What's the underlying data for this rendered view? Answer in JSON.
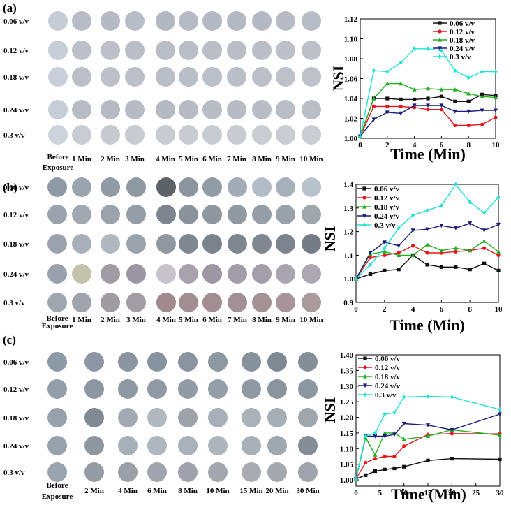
{
  "panels": [
    {
      "label": "(a)",
      "rows": [
        "0.06 v/v",
        "0.12 v/v",
        "0.18 v/v",
        "0.24 v/v",
        "0.3 v/v"
      ],
      "cols": [
        "Before Exposure",
        "1 Min",
        "2 Min",
        "3 Min",
        "4 Min",
        "5 Min",
        "6 Min",
        "7 Min",
        "8 Min",
        "9 Min",
        "10 Min"
      ],
      "row_colors": [
        [
          "#c4ccd6",
          "#b7bcc6",
          "#b5b9c3",
          "#b8bcc6",
          "#b3b7c1",
          "#b6bac4",
          "#b5b9c3",
          "#b4b8c2",
          "#b5b9c3",
          "#b7bbc5",
          "#b8bcc6"
        ],
        [
          "#c7ced8",
          "#bcc0c9",
          "#bdc0c8",
          "#babec6",
          "#b9bdc5",
          "#b9bdc5",
          "#bbbec6",
          "#babdc5",
          "#babec6",
          "#bcc0c8",
          "#bdc0c8"
        ],
        [
          "#c8cfd8",
          "#babfc8",
          "#bcc0c8",
          "#bbbfc7",
          "#babec6",
          "#babec6",
          "#bbbfc7",
          "#babec6",
          "#bbbfc7",
          "#bdc1c9",
          "#bec1c9"
        ],
        [
          "#c6cdd6",
          "#b8bcc5",
          "#b6bac3",
          "#b7bbc4",
          "#b5b9c2",
          "#b8bbc4",
          "#b8bcc4",
          "#b7bbc3",
          "#b8bcc4",
          "#b9bdc6",
          "#babec6"
        ],
        [
          "#cdd3db",
          "#c9ccd2",
          "#c7cad0",
          "#c8cbd1",
          "#c8cbd1",
          "#c8cbd1",
          "#c8cbd1",
          "#c8cbd1",
          "#c9ccd2",
          "#c9ccd2",
          "#cacdd3"
        ]
      ]
    },
    {
      "label": "(b)",
      "rows": [
        "0.06 v/v",
        "0.12 v/v",
        "0.18 v/v",
        "0.24 v/v",
        "0.3 v/v"
      ],
      "cols": [
        "Before Exposure",
        "1 Min",
        "2 Min",
        "3 Min",
        "4 Min",
        "5 Min",
        "6 Min",
        "7 Min",
        "8 Min",
        "9 Min",
        "10 Min"
      ],
      "row_colors": [
        [
          "#8f9aa6",
          "#9aa4ae",
          "#919ba5",
          "#8f99a3",
          "#5c6266",
          "#8b959f",
          "#929ca6",
          "#a2acb6",
          "#b2bcc6",
          "#a6b0ba",
          "#b8c2cc"
        ],
        [
          "#9aa3ad",
          "#a0a9b2",
          "#9aa3ac",
          "#959ea7",
          "#7d868f",
          "#8a939c",
          "#8e979f",
          "#9099a1",
          "#959ea6",
          "#99a2aa",
          "#9ea6ae"
        ],
        [
          "#9aa3ad",
          "#a7b0b9",
          "#b0b8c0",
          "#9aa2ab",
          "#8f98a1",
          "#7f8790",
          "#7a828b",
          "#7e868f",
          "#7f8790",
          "#7c848d",
          "#737b84"
        ],
        [
          "#99a1ac",
          "#c4c2ac",
          "#a29aa4",
          "#9a96a2",
          "#c7c2cc",
          "#a8a2ae",
          "#9e97a3",
          "#a39da9",
          "#a49eaa",
          "#aaa4b0",
          "#aea8b3"
        ],
        [
          "#9ea6b0",
          "#a0a4ac",
          "#a09aa2",
          "#a29ca4",
          "#a08a8e",
          "#a38e93",
          "#a28d92",
          "#a39095",
          "#a59297",
          "#a99599",
          "#a99a9e"
        ]
      ]
    },
    {
      "label": "(c)",
      "rows": [
        "0.06 v/v",
        "0.12 v/v",
        "0.18 v/v",
        "0.24 v/v",
        "0.3 v/v"
      ],
      "cols": [
        "Before Exposure",
        "2 Min",
        "4 Min",
        "6 Min",
        "8 Min",
        "10 Min",
        "15 Min",
        "20 Min",
        "30 Min"
      ],
      "row_colors": [
        [
          "#8d99a6",
          "#8c97a3",
          "#8a95a1",
          "#8893a0",
          "#8a94a0",
          "#8e98a3",
          "#87919c",
          "#7f8994",
          "#848e99"
        ],
        [
          "#949ea9",
          "#8c97a2",
          "#8d98a3",
          "#8f9aa5",
          "#909ba6",
          "#939ea8",
          "#8f99a4",
          "#8a949f",
          "#8c96a1"
        ],
        [
          "#97a1ac",
          "#808a93",
          "#a2abb4",
          "#b0b8c0",
          "#9ca3ab",
          "#a7b0b8",
          "#a9b1b9",
          "#a6aeb6",
          "#9ea6ae"
        ],
        [
          "#98a2ad",
          "#8d979f",
          "#a6b0b8",
          "#aeb7bf",
          "#a9b2ba",
          "#acb4bc",
          "#a8b0b8",
          "#9fa7af",
          "#858e97"
        ],
        [
          "#9aa4ae",
          "#959ca4",
          "#9aa0a8",
          "#a0a5ad",
          "#9fa2aa",
          "#a3a6ad",
          "#a9acb2",
          "#a5a8ae",
          "#a1a4aa"
        ]
      ]
    }
  ],
  "chart_data": [
    {
      "type": "line",
      "xlabel": "Time (Min)",
      "ylabel": "NSI",
      "xlim": [
        0,
        10
      ],
      "ylim": [
        1.0,
        1.12
      ],
      "xticks": [
        "0",
        "2",
        "4",
        "6",
        "8",
        "10"
      ],
      "yticks": [
        "1.00",
        "1.02",
        "1.04",
        "1.06",
        "1.08",
        "1.10",
        "1.12"
      ],
      "x": [
        0,
        1,
        2,
        3,
        4,
        5,
        6,
        7,
        8,
        9,
        10
      ],
      "series": [
        {
          "name": "0.06 v/v",
          "color": "#111111",
          "marker": "square",
          "values": [
            1.002,
            1.04,
            1.04,
            1.039,
            1.039,
            1.04,
            1.042,
            1.037,
            1.037,
            1.044,
            1.043
          ]
        },
        {
          "name": "0.12 v/v",
          "color": "#e8141c",
          "marker": "circle",
          "values": [
            1.002,
            1.032,
            1.032,
            1.032,
            1.031,
            1.029,
            1.029,
            1.013,
            1.013,
            1.014,
            1.021
          ]
        },
        {
          "name": "0.18 v/v",
          "color": "#22b022",
          "marker": "triangle",
          "values": [
            1.002,
            1.04,
            1.055,
            1.055,
            1.049,
            1.05,
            1.049,
            1.049,
            1.045,
            1.042,
            1.041
          ]
        },
        {
          "name": "0.24 v/v",
          "color": "#1c1c7a",
          "marker": "triangle-down",
          "values": [
            1.002,
            1.019,
            1.026,
            1.025,
            1.033,
            1.033,
            1.033,
            1.027,
            1.027,
            1.028,
            1.028
          ]
        },
        {
          "name": "0.3 v/v",
          "color": "#21e3d4",
          "marker": "diamond",
          "values": [
            1.002,
            1.068,
            1.067,
            1.076,
            1.09,
            1.09,
            1.088,
            1.068,
            1.061,
            1.067,
            1.067
          ]
        }
      ]
    },
    {
      "type": "line",
      "xlabel": "Time (Min)",
      "ylabel": "NSI",
      "xlim": [
        0,
        10
      ],
      "ylim": [
        0.9,
        1.4
      ],
      "xticks": [
        "0",
        "2",
        "4",
        "6",
        "8",
        "10"
      ],
      "yticks": [
        "0.9",
        "1.0",
        "1.1",
        "1.2",
        "1.3",
        "1.4"
      ],
      "x": [
        0,
        1,
        2,
        3,
        4,
        5,
        6,
        7,
        8,
        9,
        10
      ],
      "series": [
        {
          "name": "0.06 v/v",
          "color": "#111111",
          "marker": "square",
          "values": [
            1.0,
            1.02,
            1.035,
            1.04,
            1.1,
            1.06,
            1.05,
            1.05,
            1.04,
            1.065,
            1.035
          ]
        },
        {
          "name": "0.12 v/v",
          "color": "#e8141c",
          "marker": "circle",
          "values": [
            1.0,
            1.09,
            1.1,
            1.11,
            1.14,
            1.11,
            1.11,
            1.115,
            1.12,
            1.13,
            1.1
          ]
        },
        {
          "name": "0.18 v/v",
          "color": "#22b022",
          "marker": "triangle",
          "values": [
            1.0,
            1.105,
            1.115,
            1.1,
            1.1,
            1.145,
            1.12,
            1.13,
            1.12,
            1.16,
            1.115
          ]
        },
        {
          "name": "0.24 v/v",
          "color": "#1c1c7a",
          "marker": "triangle-down",
          "values": [
            1.0,
            1.11,
            1.155,
            1.14,
            1.205,
            1.21,
            1.225,
            1.215,
            1.235,
            1.205,
            1.23
          ]
        },
        {
          "name": "0.3 v/v",
          "color": "#21e3d4",
          "marker": "diamond",
          "values": [
            1.0,
            1.06,
            1.13,
            1.215,
            1.27,
            1.29,
            1.31,
            1.4,
            1.325,
            1.28,
            1.345
          ]
        }
      ]
    },
    {
      "type": "line",
      "xlabel": "Time (Min)",
      "ylabel": "NSI",
      "xlim": [
        0,
        30
      ],
      "ylim": [
        0.98,
        1.4
      ],
      "xticks": [
        "0",
        "5",
        "10",
        "15",
        "20",
        "25",
        "30"
      ],
      "yticks": [
        "1.00",
        "1.05",
        "1.10",
        "1.15",
        "1.20",
        "1.25",
        "1.30",
        "1.35",
        "1.40"
      ],
      "x": [
        0,
        2,
        4,
        6,
        8,
        10,
        15,
        20,
        30
      ],
      "series": [
        {
          "name": "0.06 v/v",
          "color": "#111111",
          "marker": "square",
          "values": [
            1.003,
            1.015,
            1.028,
            1.033,
            1.037,
            1.042,
            1.062,
            1.068,
            1.066
          ]
        },
        {
          "name": "0.12 v/v",
          "color": "#e8141c",
          "marker": "circle",
          "values": [
            1.003,
            1.055,
            1.068,
            1.075,
            1.075,
            1.108,
            1.145,
            1.148,
            1.147
          ]
        },
        {
          "name": "0.18 v/v",
          "color": "#22b022",
          "marker": "triangle",
          "values": [
            1.003,
            1.135,
            1.08,
            1.15,
            1.15,
            1.13,
            1.14,
            1.16,
            1.143
          ]
        },
        {
          "name": "0.24 v/v",
          "color": "#1c1c7a",
          "marker": "triangle-down",
          "values": [
            1.003,
            1.14,
            1.14,
            1.14,
            1.145,
            1.18,
            1.175,
            1.16,
            1.21
          ]
        },
        {
          "name": "0.3 v/v",
          "color": "#21e3d4",
          "marker": "diamond",
          "values": [
            1.003,
            1.14,
            1.15,
            1.21,
            1.215,
            1.265,
            1.267,
            1.265,
            1.225
          ]
        }
      ]
    }
  ]
}
